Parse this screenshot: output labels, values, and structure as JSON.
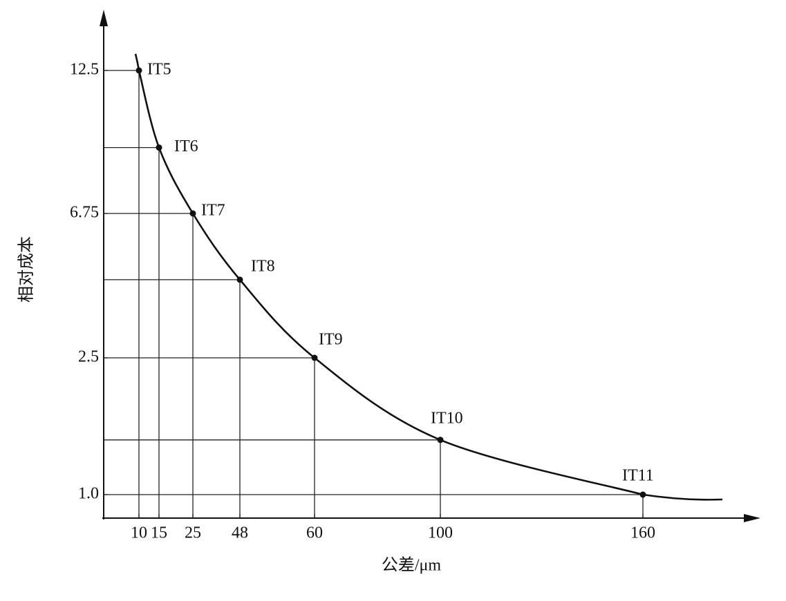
{
  "chart_data": {
    "type": "line",
    "x_label": "公差/μm",
    "y_label": "相对成本",
    "x": [
      10,
      15,
      25,
      48,
      60,
      100,
      160
    ],
    "series": [
      {
        "color": "#111111",
        "values": [
          12.5,
          9.4,
          6.75,
          4.8,
          2.5,
          1.6,
          1.0
        ],
        "point_labels": [
          "IT5",
          "IT6",
          "IT7",
          "IT8",
          "IT9",
          "IT10",
          "IT11"
        ]
      }
    ],
    "xticks": [
      10,
      15,
      25,
      48,
      60,
      100,
      160
    ],
    "yticks": [
      {
        "value": 1,
        "label": "1.0"
      },
      2.5,
      6.75,
      12.5
    ]
  }
}
